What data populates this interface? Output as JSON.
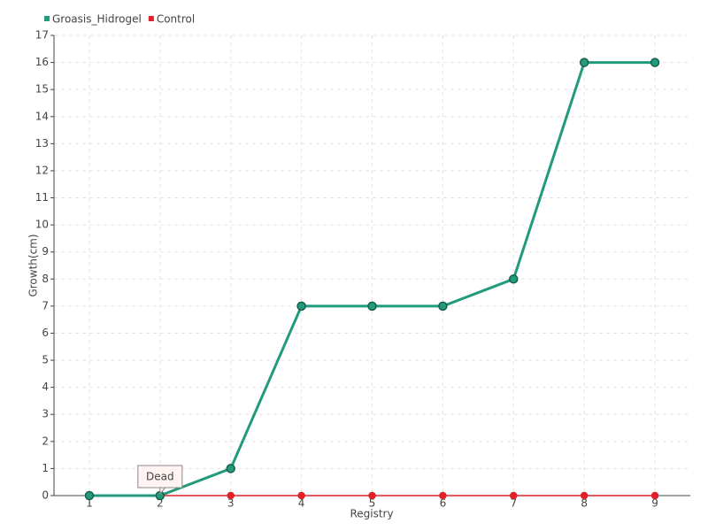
{
  "chart_data": {
    "type": "line",
    "x_label": "Registry",
    "y_label": "Growth(cm)",
    "categories": [
      "1",
      "2",
      "3",
      "4",
      "5",
      "6",
      "7",
      "8",
      "9"
    ],
    "series": [
      {
        "name": "Groasis_Hidrogel",
        "color": "#229a7c",
        "values": [
          0,
          0,
          1,
          7,
          7,
          7,
          8,
          16,
          16
        ]
      },
      {
        "name": "Control",
        "color": "#e0202a",
        "values": [
          0,
          0,
          0,
          0,
          0,
          0,
          0,
          0,
          0
        ]
      }
    ],
    "ylim": [
      0,
      17
    ],
    "yticks": [
      0,
      1,
      2,
      3,
      4,
      5,
      6,
      7,
      8,
      9,
      10,
      11,
      12,
      13,
      14,
      15,
      16,
      17
    ],
    "grid": true,
    "legend": "top-left",
    "annotations": [
      {
        "text": "Dead",
        "x": "2"
      }
    ]
  }
}
